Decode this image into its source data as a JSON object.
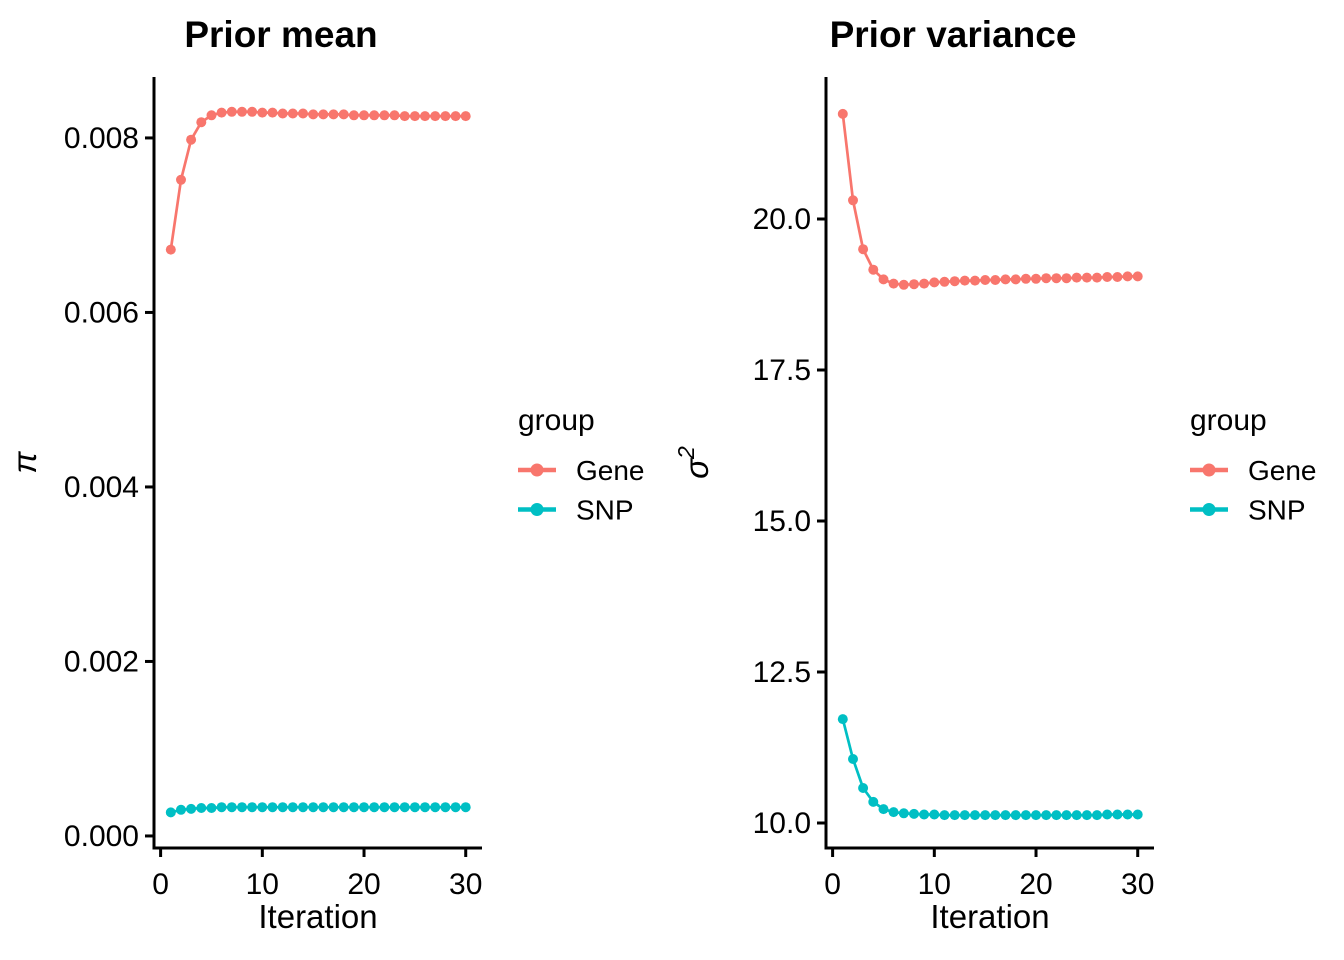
{
  "page": {
    "background": "#ffffff",
    "text_color": "#000000",
    "axis_color": "#000000"
  },
  "palette": {
    "gene": "#F8766D",
    "snp": "#00BFC4"
  },
  "chart_data": [
    {
      "type": "line",
      "title": "Prior mean",
      "xlabel": "Iteration",
      "ylabel": "π",
      "ylabel_superscript": "",
      "x": [
        1,
        2,
        3,
        4,
        5,
        6,
        7,
        8,
        9,
        10,
        11,
        12,
        13,
        14,
        15,
        16,
        17,
        18,
        19,
        20,
        21,
        22,
        23,
        24,
        25,
        26,
        27,
        28,
        29,
        30
      ],
      "series": [
        {
          "name": "Gene",
          "color": "#F8766D",
          "values": [
            0.00672,
            0.00752,
            0.00798,
            0.00818,
            0.00826,
            0.00829,
            0.0083,
            0.0083,
            0.0083,
            0.00829,
            0.00829,
            0.00828,
            0.00828,
            0.00828,
            0.00827,
            0.00827,
            0.00827,
            0.00827,
            0.00826,
            0.00826,
            0.00826,
            0.00826,
            0.00826,
            0.00825,
            0.00825,
            0.00825,
            0.00825,
            0.00825,
            0.00825,
            0.00825
          ]
        },
        {
          "name": "SNP",
          "color": "#00BFC4",
          "values": [
            0.00027,
            0.0003,
            0.00031,
            0.00032,
            0.00032,
            0.00033,
            0.00033,
            0.00033,
            0.00033,
            0.00033,
            0.00033,
            0.00033,
            0.00033,
            0.00033,
            0.00033,
            0.00033,
            0.00033,
            0.00033,
            0.00033,
            0.00033,
            0.00033,
            0.00033,
            0.00033,
            0.00033,
            0.00033,
            0.00033,
            0.00033,
            0.00033,
            0.00033,
            0.00033
          ]
        }
      ],
      "xlim": [
        -0.65,
        31.6
      ],
      "ylim": [
        -0.000138,
        0.0086985
      ],
      "xticks": {
        "values": [
          0,
          10,
          20,
          30
        ],
        "labels": [
          "0",
          "10",
          "20",
          "30"
        ]
      },
      "yticks": {
        "values": [
          0,
          0.002,
          0.004,
          0.006,
          0.008
        ],
        "labels": [
          "0.000",
          "0.002",
          "0.004",
          "0.006",
          "0.008"
        ]
      },
      "legend": {
        "title": "group",
        "position": "right",
        "entries": [
          {
            "label": "Gene",
            "color": "#F8766D"
          },
          {
            "label": "SNP",
            "color": "#00BFC4"
          }
        ]
      },
      "grid": false,
      "marker": "point-line"
    },
    {
      "type": "line",
      "title": "Prior variance",
      "xlabel": "Iteration",
      "ylabel": "σ",
      "ylabel_superscript": "2",
      "x": [
        1,
        2,
        3,
        4,
        5,
        6,
        7,
        8,
        9,
        10,
        11,
        12,
        13,
        14,
        15,
        16,
        17,
        18,
        19,
        20,
        21,
        22,
        23,
        24,
        25,
        26,
        27,
        28,
        29,
        30
      ],
      "series": [
        {
          "name": "Gene",
          "color": "#F8766D",
          "values": [
            21.74,
            20.31,
            19.5,
            19.16,
            19.0,
            18.93,
            18.91,
            18.92,
            18.93,
            18.95,
            18.96,
            18.97,
            18.98,
            18.98,
            18.99,
            18.99,
            19.0,
            19.0,
            19.01,
            19.01,
            19.02,
            19.02,
            19.02,
            19.03,
            19.03,
            19.03,
            19.04,
            19.04,
            19.05,
            19.05
          ]
        },
        {
          "name": "SNP",
          "color": "#00BFC4",
          "values": [
            11.72,
            11.06,
            10.58,
            10.35,
            10.23,
            10.18,
            10.16,
            10.15,
            10.14,
            10.14,
            10.13,
            10.13,
            10.13,
            10.13,
            10.13,
            10.13,
            10.13,
            10.13,
            10.13,
            10.13,
            10.13,
            10.13,
            10.13,
            10.13,
            10.13,
            10.13,
            10.14,
            10.14,
            10.14,
            10.14
          ]
        }
      ],
      "xlim": [
        -0.65,
        31.6
      ],
      "ylim": [
        9.586,
        22.351
      ],
      "xticks": {
        "values": [
          0,
          10,
          20,
          30
        ],
        "labels": [
          "0",
          "10",
          "20",
          "30"
        ]
      },
      "yticks": {
        "values": [
          10.0,
          12.5,
          15.0,
          17.5,
          20.0
        ],
        "labels": [
          "10.0",
          "12.5",
          "15.0",
          "17.5",
          "20.0"
        ]
      },
      "legend": {
        "title": "group",
        "position": "right",
        "entries": [
          {
            "label": "Gene",
            "color": "#F8766D"
          },
          {
            "label": "SNP",
            "color": "#00BFC4"
          }
        ]
      },
      "grid": false,
      "marker": "point-line"
    }
  ]
}
